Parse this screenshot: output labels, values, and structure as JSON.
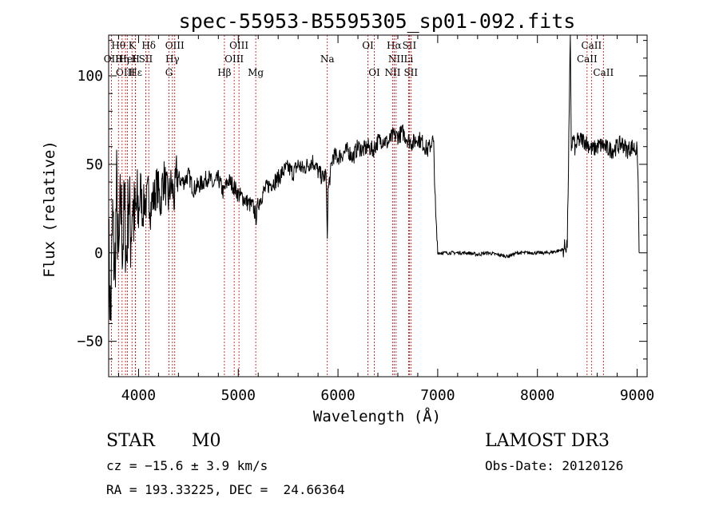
{
  "chart_data": {
    "type": "line",
    "title": "spec-55953-B5595305_sp01-092.fits",
    "xlabel": "Wavelength (Å)",
    "ylabel": "Flux (relative)",
    "xlim": [
      3700,
      9100
    ],
    "ylim": [
      -70,
      123
    ],
    "xticks": [
      4000,
      5000,
      6000,
      7000,
      8000,
      9000
    ],
    "yticks": [
      -50,
      0,
      50,
      100
    ],
    "series": [
      {
        "name": "flux",
        "x": [
          3700,
          3720,
          3740,
          3760,
          3780,
          3800,
          3820,
          3840,
          3860,
          3880,
          3900,
          3920,
          3940,
          3960,
          3980,
          4000,
          4020,
          4040,
          4060,
          4080,
          4100,
          4120,
          4140,
          4160,
          4180,
          4200,
          4220,
          4240,
          4260,
          4280,
          4300,
          4320,
          4340,
          4360,
          4380,
          4400,
          4450,
          4500,
          4550,
          4600,
          4650,
          4700,
          4750,
          4800,
          4850,
          4900,
          4950,
          5000,
          5050,
          5100,
          5150,
          5180,
          5200,
          5250,
          5300,
          5350,
          5400,
          5450,
          5500,
          5550,
          5600,
          5650,
          5700,
          5750,
          5800,
          5850,
          5880,
          5893,
          5900,
          5950,
          6000,
          6050,
          6100,
          6150,
          6200,
          6250,
          6300,
          6350,
          6400,
          6450,
          6500,
          6550,
          6600,
          6650,
          6700,
          6750,
          6800,
          6850,
          6900,
          6940,
          6950,
          6960,
          6980,
          7000,
          7100,
          7200,
          7300,
          7400,
          7500,
          7600,
          7700,
          7800,
          7900,
          8000,
          8100,
          8200,
          8260,
          8300,
          8330,
          8340,
          8360,
          8380,
          8400,
          8450,
          8500,
          8550,
          8600,
          8650,
          8700,
          8750,
          8800,
          8850,
          8900,
          8950,
          9000,
          9010,
          9020
        ],
        "y": [
          5,
          -40,
          20,
          -15,
          35,
          -10,
          30,
          5,
          25,
          -5,
          35,
          10,
          30,
          15,
          25,
          20,
          38,
          22,
          30,
          28,
          35,
          25,
          30,
          32,
          38,
          35,
          28,
          40,
          42,
          35,
          30,
          38,
          36,
          30,
          45,
          42,
          40,
          44,
          36,
          38,
          40,
          43,
          38,
          42,
          34,
          41,
          38,
          33,
          31,
          28,
          26,
          20,
          28,
          34,
          38,
          40,
          42,
          46,
          48,
          45,
          50,
          47,
          50,
          52,
          46,
          42,
          45,
          8,
          35,
          55,
          54,
          56,
          58,
          54,
          60,
          58,
          60,
          58,
          63,
          64,
          62,
          66,
          66,
          68,
          64,
          62,
          65,
          62,
          58,
          62,
          66,
          60,
          20,
          0,
          0,
          0,
          0,
          -1,
          0,
          -1,
          -2,
          0,
          0,
          0,
          0,
          1,
          2,
          5,
          123,
          60,
          65,
          58,
          63,
          64,
          62,
          58,
          60,
          61,
          59,
          58,
          60,
          62,
          58,
          60,
          58,
          40,
          0
        ]
      }
    ],
    "lines": [
      {
        "label": "Hθ",
        "x": 3798,
        "row": 0
      },
      {
        "label": "OII",
        "x": 3727,
        "row": 1
      },
      {
        "label": "OIII",
        "x": 3869,
        "row": 2
      },
      {
        "label": "Hε",
        "x": 3970,
        "row": 2
      },
      {
        "label": "Hη",
        "x": 3835,
        "row": 1
      },
      {
        "label": "K",
        "x": 3934,
        "row": 0
      },
      {
        "label": "HeI",
        "x": 3889,
        "row": 1
      },
      {
        "label": "H",
        "x": 3969,
        "row": 1
      },
      {
        "label": "SII",
        "x": 4072,
        "row": 1
      },
      {
        "label": "Hδ",
        "x": 4102,
        "row": 0
      },
      {
        "label": "OIII",
        "x": 4363,
        "row": 0
      },
      {
        "label": "Hγ",
        "x": 4340,
        "row": 1
      },
      {
        "label": "G",
        "x": 4305,
        "row": 2
      },
      {
        "label": "OIII",
        "x": 5007,
        "row": 0
      },
      {
        "label": "OIII",
        "x": 4959,
        "row": 1
      },
      {
        "label": "Hβ",
        "x": 4861,
        "row": 2
      },
      {
        "label": "Mg",
        "x": 5175,
        "row": 2
      },
      {
        "label": "Na",
        "x": 5893,
        "row": 1
      },
      {
        "label": "OI",
        "x": 6300,
        "row": 0
      },
      {
        "label": "OI",
        "x": 6364,
        "row": 2
      },
      {
        "label": "Hα",
        "x": 6563,
        "row": 0
      },
      {
        "label": "NII",
        "x": 6583,
        "row": 1
      },
      {
        "label": "NII",
        "x": 6548,
        "row": 2
      },
      {
        "label": "SII",
        "x": 6716,
        "row": 0
      },
      {
        "label": "Li",
        "x": 6708,
        "row": 1
      },
      {
        "label": "SII",
        "x": 6731,
        "row": 2
      },
      {
        "label": "CaII",
        "x": 8542,
        "row": 0
      },
      {
        "label": "CaII",
        "x": 8498,
        "row": 1
      },
      {
        "label": "CaII",
        "x": 8662,
        "row": 2
      }
    ]
  },
  "info": {
    "object_class": "STAR",
    "subclass": "M0",
    "survey": "LAMOST DR3",
    "cz": "cz = −15.6 ± 3.9 km/s",
    "obs_date": "Obs-Date: 20120126",
    "coords": "RA = 193.33225, DEC =  24.66364"
  }
}
